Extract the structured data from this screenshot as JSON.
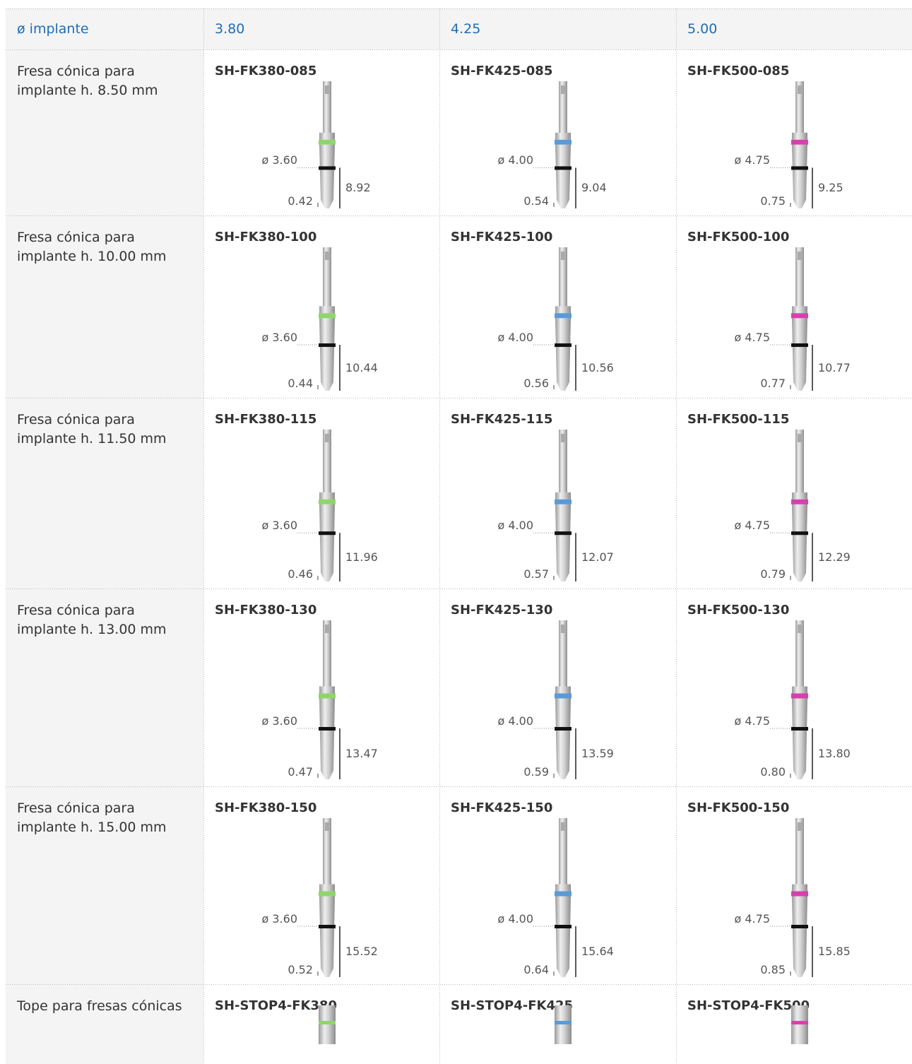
{
  "table": {
    "header": [
      "ø implante",
      "3.80",
      "4.25",
      "5.00"
    ],
    "rows": [
      {
        "label": [
          "Fresa cónica para",
          "implante h. 8.50 mm"
        ],
        "cells": [
          {
            "code": "SH-FK380-085",
            "diameter": "ø 3.60",
            "length": "8.92",
            "tip": "0.42"
          },
          {
            "code": "SH-FK425-085",
            "diameter": "ø 4.00",
            "length": "9.04",
            "tip": "0.54"
          },
          {
            "code": "SH-FK500-085",
            "diameter": "ø 4.75",
            "length": "9.25",
            "tip": "0.75"
          }
        ]
      },
      {
        "label": [
          "Fresa cónica para",
          "implante h. 10.00 mm"
        ],
        "cells": [
          {
            "code": "SH-FK380-100",
            "diameter": "ø 3.60",
            "length": "10.44",
            "tip": "0.44"
          },
          {
            "code": "SH-FK425-100",
            "diameter": "ø 4.00",
            "length": "10.56",
            "tip": "0.56"
          },
          {
            "code": "SH-FK500-100",
            "diameter": "ø 4.75",
            "length": "10.77",
            "tip": "0.77"
          }
        ]
      },
      {
        "label": [
          "Fresa cónica para",
          "implante h. 11.50 mm"
        ],
        "cells": [
          {
            "code": "SH-FK380-115",
            "diameter": "ø 3.60",
            "length": "11.96",
            "tip": "0.46"
          },
          {
            "code": "SH-FK425-115",
            "diameter": "ø 4.00",
            "length": "12.07",
            "tip": "0.57"
          },
          {
            "code": "SH-FK500-115",
            "diameter": "ø 4.75",
            "length": "12.29",
            "tip": "0.79"
          }
        ]
      },
      {
        "label": [
          "Fresa cónica para",
          "implante h. 13.00 mm"
        ],
        "cells": [
          {
            "code": "SH-FK380-130",
            "diameter": "ø 3.60",
            "length": "13.47",
            "tip": "0.47"
          },
          {
            "code": "SH-FK425-130",
            "diameter": "ø 4.00",
            "length": "13.59",
            "tip": "0.59"
          },
          {
            "code": "SH-FK500-130",
            "diameter": "ø 4.75",
            "length": "13.80",
            "tip": "0.80"
          }
        ]
      },
      {
        "label": [
          "Fresa cónica para",
          "implante h. 15.00 mm"
        ],
        "cells": [
          {
            "code": "SH-FK380-150",
            "diameter": "ø 3.60",
            "length": "15.52",
            "tip": "0.52"
          },
          {
            "code": "SH-FK425-150",
            "diameter": "ø 4.00",
            "length": "15.64",
            "tip": "0.64"
          },
          {
            "code": "SH-FK500-150",
            "diameter": "ø 4.75",
            "length": "15.85",
            "tip": "0.85"
          }
        ]
      },
      {
        "label": [
          "Tope para fresas cónicas"
        ],
        "cells": [
          {
            "code": "SH-STOP4-FK380"
          },
          {
            "code": "SH-STOP4-FK425"
          },
          {
            "code": "SH-STOP4-FK500"
          }
        ]
      }
    ]
  }
}
